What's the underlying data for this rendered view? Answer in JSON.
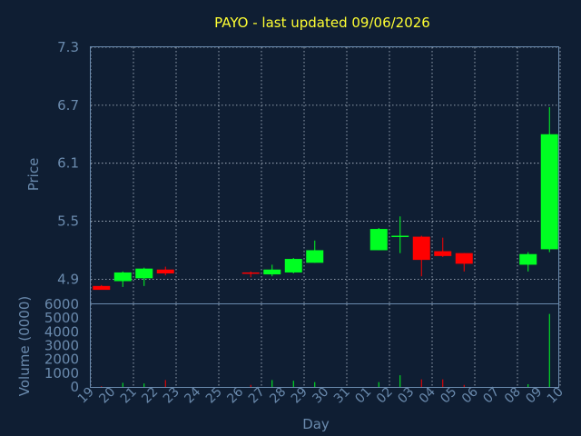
{
  "chart_data": {
    "type": "candlestick",
    "title": "PAYO - last updated 09/06/2026",
    "ylabel": "Price",
    "volume_label": "Volume (0000)",
    "xlabel": "Day",
    "ylim": [
      4.65,
      7.3
    ],
    "yticks": [
      "4.9",
      "5.5",
      "6.1",
      "6.7",
      "7.3"
    ],
    "volume_ylim": [
      0,
      6000
    ],
    "volume_ticks": [
      "0",
      "1000",
      "2000",
      "3000",
      "4000",
      "5000",
      "6000"
    ],
    "x_ticks": [
      "19",
      "20",
      "21",
      "22",
      "23",
      "24",
      "25",
      "26",
      "27",
      "28",
      "29",
      "30",
      "31",
      "01",
      "02",
      "03",
      "04",
      "05",
      "06",
      "07",
      "08",
      "09",
      "10"
    ],
    "colors": {
      "up": "#00ff22",
      "down": "#ff0000",
      "title": "#ffff33",
      "axis": "#6a8aad",
      "background": "#0f1e33"
    },
    "candles": [
      {
        "day": "19",
        "open": 4.83,
        "high": 4.84,
        "low": 4.8,
        "close": 4.79,
        "volume": 50
      },
      {
        "day": "20",
        "open": 4.88,
        "high": 4.98,
        "low": 4.82,
        "close": 4.97,
        "volume": 300
      },
      {
        "day": "21",
        "open": 4.91,
        "high": 5.02,
        "low": 4.83,
        "close": 5.01,
        "volume": 250
      },
      {
        "day": "22",
        "open": 5.0,
        "high": 5.03,
        "low": 4.94,
        "close": 4.96,
        "volume": 500
      },
      {
        "day": "26",
        "open": 4.97,
        "high": 4.98,
        "low": 4.92,
        "close": 4.96,
        "volume": 150
      },
      {
        "day": "27",
        "open": 4.95,
        "high": 5.05,
        "low": 4.93,
        "close": 5.0,
        "volume": 500
      },
      {
        "day": "28",
        "open": 4.97,
        "high": 5.12,
        "low": 4.96,
        "close": 5.11,
        "volume": 450
      },
      {
        "day": "29",
        "open": 5.07,
        "high": 5.3,
        "low": 5.07,
        "close": 5.2,
        "volume": 350
      },
      {
        "day": "01",
        "open": 5.2,
        "high": 5.43,
        "low": 5.2,
        "close": 5.42,
        "volume": 350
      },
      {
        "day": "02",
        "open": 5.34,
        "high": 5.55,
        "low": 5.17,
        "close": 5.35,
        "volume": 850
      },
      {
        "day": "03",
        "open": 5.34,
        "high": 5.35,
        "low": 4.93,
        "close": 5.1,
        "volume": 550
      },
      {
        "day": "04",
        "open": 5.19,
        "high": 5.33,
        "low": 5.13,
        "close": 5.14,
        "volume": 550
      },
      {
        "day": "05",
        "open": 5.17,
        "high": 5.17,
        "low": 4.98,
        "close": 5.06,
        "volume": 150
      },
      {
        "day": "08",
        "open": 5.05,
        "high": 5.18,
        "low": 4.98,
        "close": 5.16,
        "volume": 200
      },
      {
        "day": "09",
        "open": 5.21,
        "high": 6.68,
        "low": 5.18,
        "close": 6.4,
        "volume": 5300
      }
    ]
  }
}
